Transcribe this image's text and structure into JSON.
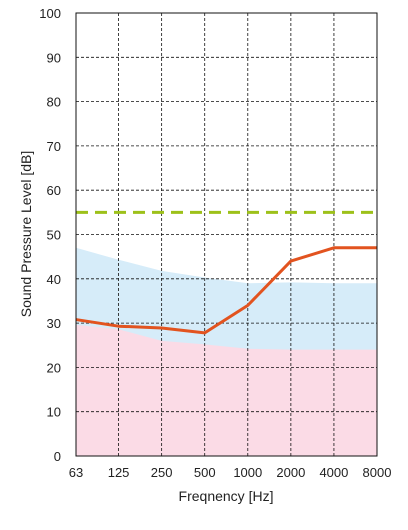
{
  "chart_data": {
    "type": "line",
    "xlabel": "Freqnency [Hz]",
    "ylabel": "Sound Pressure Level [dB]",
    "x_scale": "log2",
    "x_ticks": [
      "63",
      "125",
      "250",
      "500",
      "1000",
      "2000",
      "4000",
      "8000"
    ],
    "y_ticks": [
      "0",
      "10",
      "20",
      "30",
      "40",
      "50",
      "60",
      "70",
      "80",
      "90",
      "100"
    ],
    "ylim": [
      0,
      100
    ],
    "grid": true,
    "series": [
      {
        "kind": "line",
        "color": "#e2531f",
        "x": [
          63,
          125,
          250,
          500,
          1000,
          2000,
          4000,
          8000
        ],
        "y": [
          30.8,
          29.3,
          28.9,
          27.8,
          34,
          44,
          47,
          47
        ]
      },
      {
        "kind": "dashed-line",
        "color": "#9dc11a",
        "x": [
          63,
          8000
        ],
        "y": [
          55,
          55
        ]
      },
      {
        "kind": "area",
        "color": "#d6ecf9",
        "x": [
          63,
          125,
          250,
          500,
          1000,
          2000,
          4000,
          8000
        ],
        "y": [
          47,
          44.3,
          41.8,
          40.3,
          39,
          39.2,
          39,
          39
        ]
      },
      {
        "kind": "area",
        "color": "#fbdbe6",
        "x": [
          63,
          125,
          250,
          500,
          1000,
          2000,
          4000,
          8000
        ],
        "y": [
          29.6,
          28.6,
          26,
          25.2,
          24.2,
          24,
          24,
          24
        ]
      }
    ]
  }
}
